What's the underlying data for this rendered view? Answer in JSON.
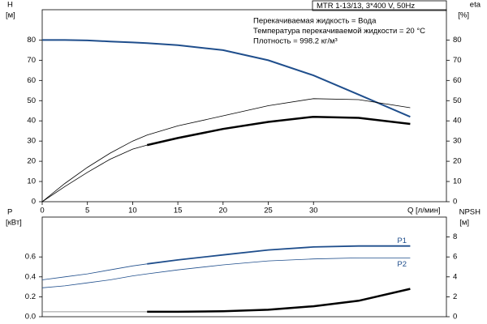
{
  "chart_data": [
    {
      "type": "line",
      "title": "MTR 1-13/13, 3*400 V, 50Hz",
      "notes": [
        "Перекачиваемая жидкость = Вода",
        "Температура перекачиваемой жидкости = 20 °C",
        "Плотность = 998.2 кг/м³"
      ],
      "x_label": "Q [л/мин]",
      "y_label": "H",
      "y_unit": "[м]",
      "y2_label": "eta",
      "y2_unit": "[%]",
      "x": [
        0,
        2.5,
        5,
        7.5,
        10,
        11.6,
        15,
        20,
        25,
        30,
        35,
        40.7
      ],
      "xlim": [
        0,
        44.7
      ],
      "xticks": [
        0,
        5,
        10,
        15,
        20,
        25,
        30
      ],
      "ylim": [
        0,
        95
      ],
      "yticks": [
        0,
        10,
        20,
        30,
        40,
        50,
        60,
        70,
        80
      ],
      "y2lim": [
        0,
        95
      ],
      "y2ticks": [
        0,
        10,
        20,
        30,
        40,
        50,
        60,
        70,
        80
      ],
      "series": [
        {
          "color": "#1f4e8c",
          "width": 2,
          "values": [
            80,
            80,
            79.8,
            79.3,
            78.8,
            78.5,
            77.5,
            75,
            70,
            62.5,
            53,
            42
          ]
        },
        {
          "color": "#000000",
          "width": 0.8,
          "axis": "y2",
          "values": [
            0,
            9,
            17,
            24,
            30,
            33,
            37.5,
            42.5,
            47.5,
            51,
            50.5,
            46.5
          ]
        },
        {
          "color": "#000000",
          "width": 0.8,
          "axis": "y2",
          "values": [
            0,
            7.5,
            14.5,
            21,
            26,
            28,
            null,
            null,
            null,
            null,
            null,
            null
          ]
        },
        {
          "color": "#000000",
          "width": 2.5,
          "axis": "y2",
          "values": [
            null,
            null,
            null,
            null,
            null,
            28,
            31.5,
            36,
            39.5,
            42,
            41.5,
            38.5
          ]
        }
      ]
    },
    {
      "type": "line",
      "y_label": "P",
      "y_unit": "[кВт]",
      "y2_label": "NPSH",
      "y2_unit": "[м]",
      "x": [
        0,
        2.5,
        5,
        7.5,
        10,
        11.6,
        15,
        20,
        25,
        30,
        35,
        40.7
      ],
      "xlim": [
        0,
        44.7
      ],
      "ylim": [
        0,
        1
      ],
      "yticks": [
        {
          "value": 0,
          "label": "0.0"
        },
        0.2,
        0.4,
        0.6
      ],
      "y2lim": [
        0,
        10
      ],
      "y2ticks": [
        0,
        2,
        4,
        6,
        8
      ],
      "series": [
        {
          "color": "#1f4e8c",
          "width": 0.8,
          "values": [
            0.37,
            0.4,
            0.43,
            0.47,
            0.51,
            0.53,
            null,
            null,
            null,
            null,
            null,
            null
          ]
        },
        {
          "name": "P1",
          "color": "#1f4e8c",
          "width": 1.8,
          "values": [
            null,
            null,
            null,
            null,
            null,
            0.53,
            0.57,
            0.62,
            0.67,
            0.7,
            0.71,
            0.71
          ]
        },
        {
          "name": "P2",
          "color": "#1f4e8c",
          "width": 0.8,
          "values": [
            0.29,
            0.31,
            0.34,
            0.37,
            0.41,
            0.43,
            0.47,
            0.52,
            0.56,
            0.58,
            0.59,
            0.59
          ]
        },
        {
          "color": "#999999",
          "width": 1,
          "axis": "y2",
          "values": [
            0.5,
            0.5,
            0.5,
            0.5,
            0.5,
            0.5,
            null,
            null,
            null,
            null,
            null,
            null
          ]
        },
        {
          "color": "#000000",
          "width": 2.5,
          "axis": "y2",
          "values": [
            null,
            null,
            null,
            null,
            null,
            0.5,
            0.5,
            0.55,
            0.7,
            1.05,
            1.6,
            2.8
          ]
        }
      ]
    }
  ]
}
